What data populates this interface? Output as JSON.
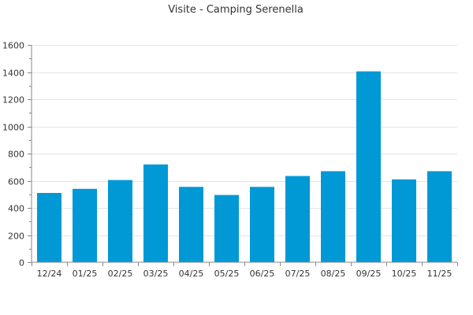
{
  "chart_data": {
    "type": "bar",
    "title": "Visite - Camping Serenella",
    "xlabel": "",
    "ylabel": "",
    "categories": [
      "12/24",
      "01/25",
      "02/25",
      "03/25",
      "04/25",
      "05/25",
      "06/25",
      "07/25",
      "08/25",
      "09/25",
      "10/25",
      "11/25"
    ],
    "values": [
      510,
      540,
      605,
      720,
      555,
      495,
      555,
      635,
      670,
      1405,
      610,
      670
    ],
    "ylim": [
      0,
      1600
    ],
    "yticks": [
      0,
      200,
      400,
      600,
      800,
      1000,
      1200,
      1400,
      1600
    ],
    "grid": true,
    "legend": "none",
    "bar_color": "#0099d6"
  }
}
